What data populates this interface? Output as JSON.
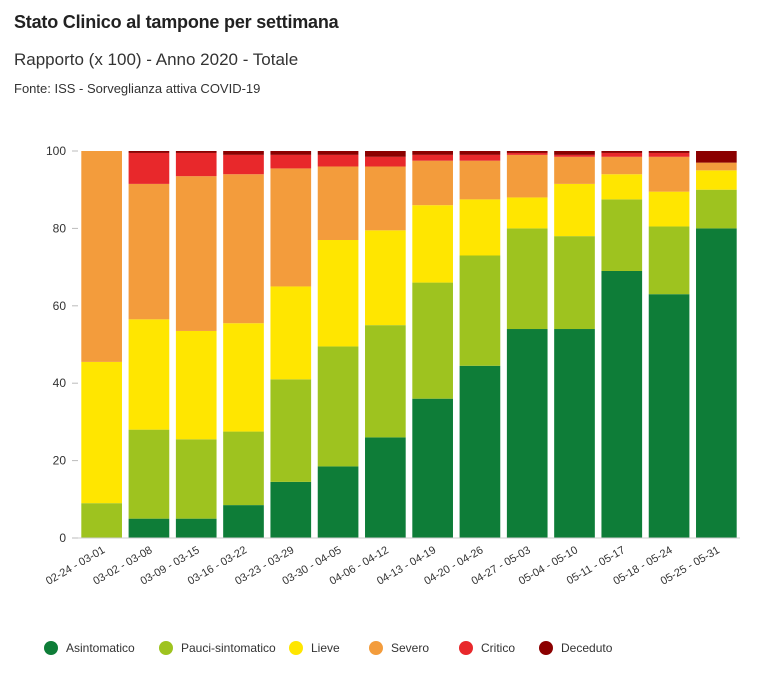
{
  "header": {
    "title": "Stato Clinico al tampone per settimana",
    "subtitle": "Rapporto (x 100) - Anno 2020 - Totale",
    "source": "Fonte: ISS - Sorveglianza attiva COVID-19"
  },
  "chart_data": {
    "type": "bar",
    "stacked": true,
    "title": "Stato Clinico al tampone per settimana",
    "subtitle": "Rapporto (x 100) - Anno 2020 - Totale",
    "xlabel": "",
    "ylabel": "",
    "ylim": [
      0,
      100
    ],
    "yticks": [
      0,
      20,
      40,
      60,
      80,
      100
    ],
    "grid": false,
    "legend_position": "bottom",
    "categories": [
      "02-24 - 03-01",
      "03-02 - 03-08",
      "03-09 - 03-15",
      "03-16 - 03-22",
      "03-23 - 03-29",
      "03-30 - 04-05",
      "04-06 - 04-12",
      "04-13 - 04-19",
      "04-20 - 04-26",
      "04-27 - 05-03",
      "05-04 - 05-10",
      "05-11 - 05-17",
      "05-18 - 05-24",
      "05-25 - 05-31"
    ],
    "series": [
      {
        "name": "Asintomatico",
        "color": "#0e7d38",
        "values": [
          0,
          5,
          5,
          8.5,
          14.5,
          18.5,
          26,
          36,
          44.5,
          54,
          54,
          69,
          63,
          80
        ]
      },
      {
        "name": "Pauci-sintomatico",
        "color": "#9ec31f",
        "values": [
          9,
          23,
          20.5,
          19,
          26.5,
          31,
          29,
          30,
          28.5,
          26,
          24,
          18.5,
          17.5,
          10
        ]
      },
      {
        "name": "Lieve",
        "color": "#ffe600",
        "values": [
          36.5,
          28.5,
          28,
          28,
          24,
          27.5,
          24.5,
          20,
          14.5,
          8,
          13.5,
          6.5,
          9,
          5
        ]
      },
      {
        "name": "Severo",
        "color": "#f39c3c",
        "values": [
          54.5,
          35,
          40,
          38.5,
          30.5,
          19,
          16.5,
          11.5,
          10,
          11,
          7,
          4.5,
          9,
          2
        ]
      },
      {
        "name": "Critico",
        "color": "#e8282b",
        "values": [
          0,
          8,
          6,
          5,
          3.5,
          3,
          2.5,
          1.5,
          1.5,
          0.5,
          0.5,
          1,
          1,
          0
        ]
      },
      {
        "name": "Deceduto",
        "color": "#8b0000",
        "values": [
          0,
          0.5,
          0.5,
          1,
          1,
          1,
          1.5,
          1,
          1,
          0.5,
          1,
          0.5,
          0.5,
          3
        ]
      }
    ]
  }
}
